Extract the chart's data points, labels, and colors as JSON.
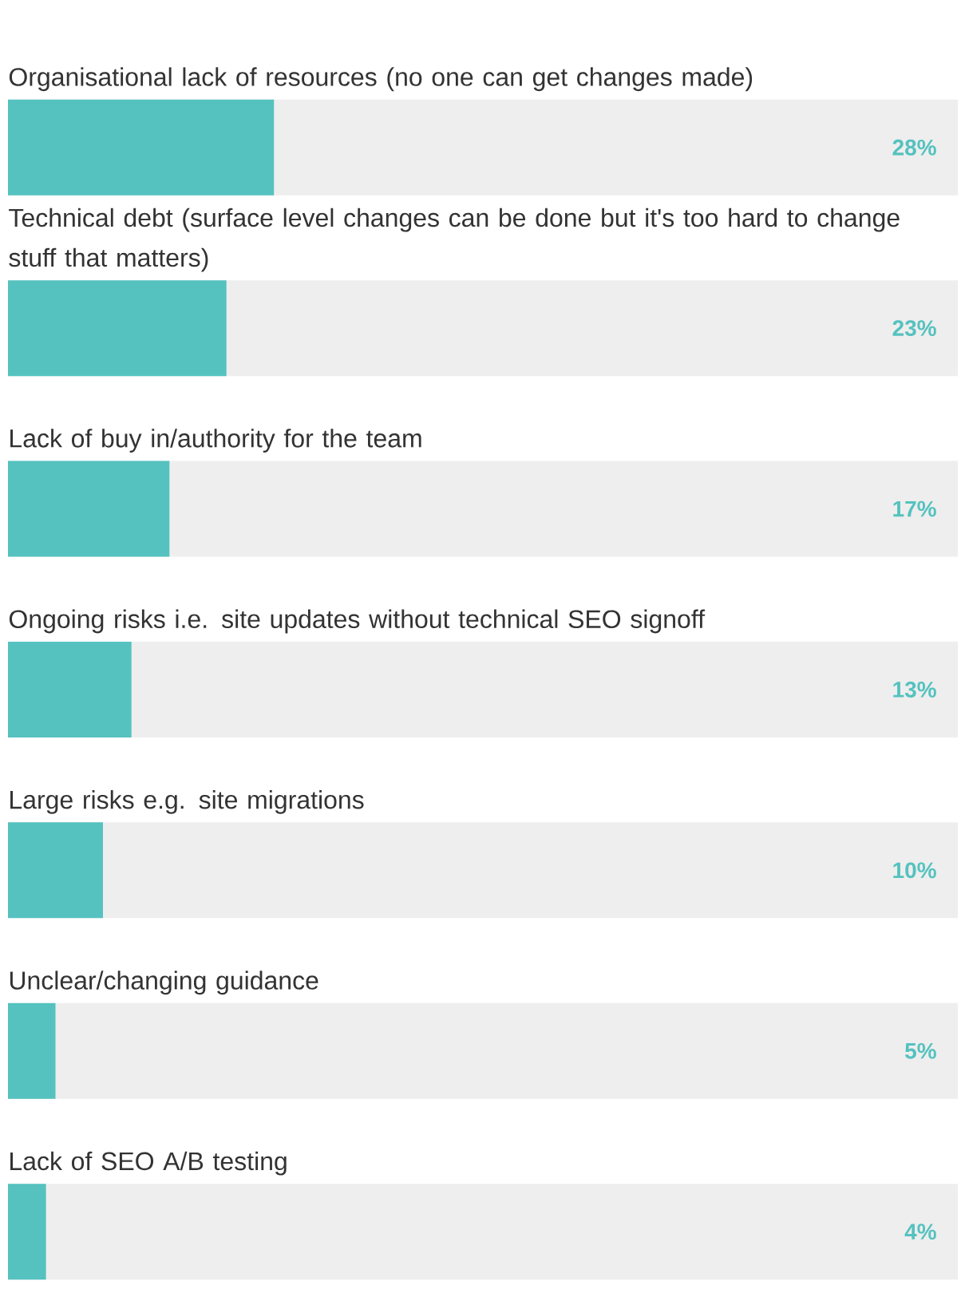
{
  "chart_data": {
    "type": "bar",
    "orientation": "horizontal",
    "categories": [
      "Organisational lack of resources (no one can get changes made)",
      "Technical debt (surface level changes can be done but it's too hard to change stuff that matters)",
      "Lack of buy in/authority for the team",
      "Ongoing risks i.e. site updates without technical SEO signoff",
      "Large risks e.g. site migrations",
      "Unclear/changing guidance",
      "Lack of SEO A/B testing"
    ],
    "values": [
      28,
      23,
      17,
      13,
      10,
      5,
      4
    ],
    "value_labels": [
      "28%",
      "23%",
      "17%",
      "13%",
      "10%",
      "5%",
      "4%"
    ],
    "color": "#55c2bf",
    "xlim": [
      0,
      100
    ]
  }
}
